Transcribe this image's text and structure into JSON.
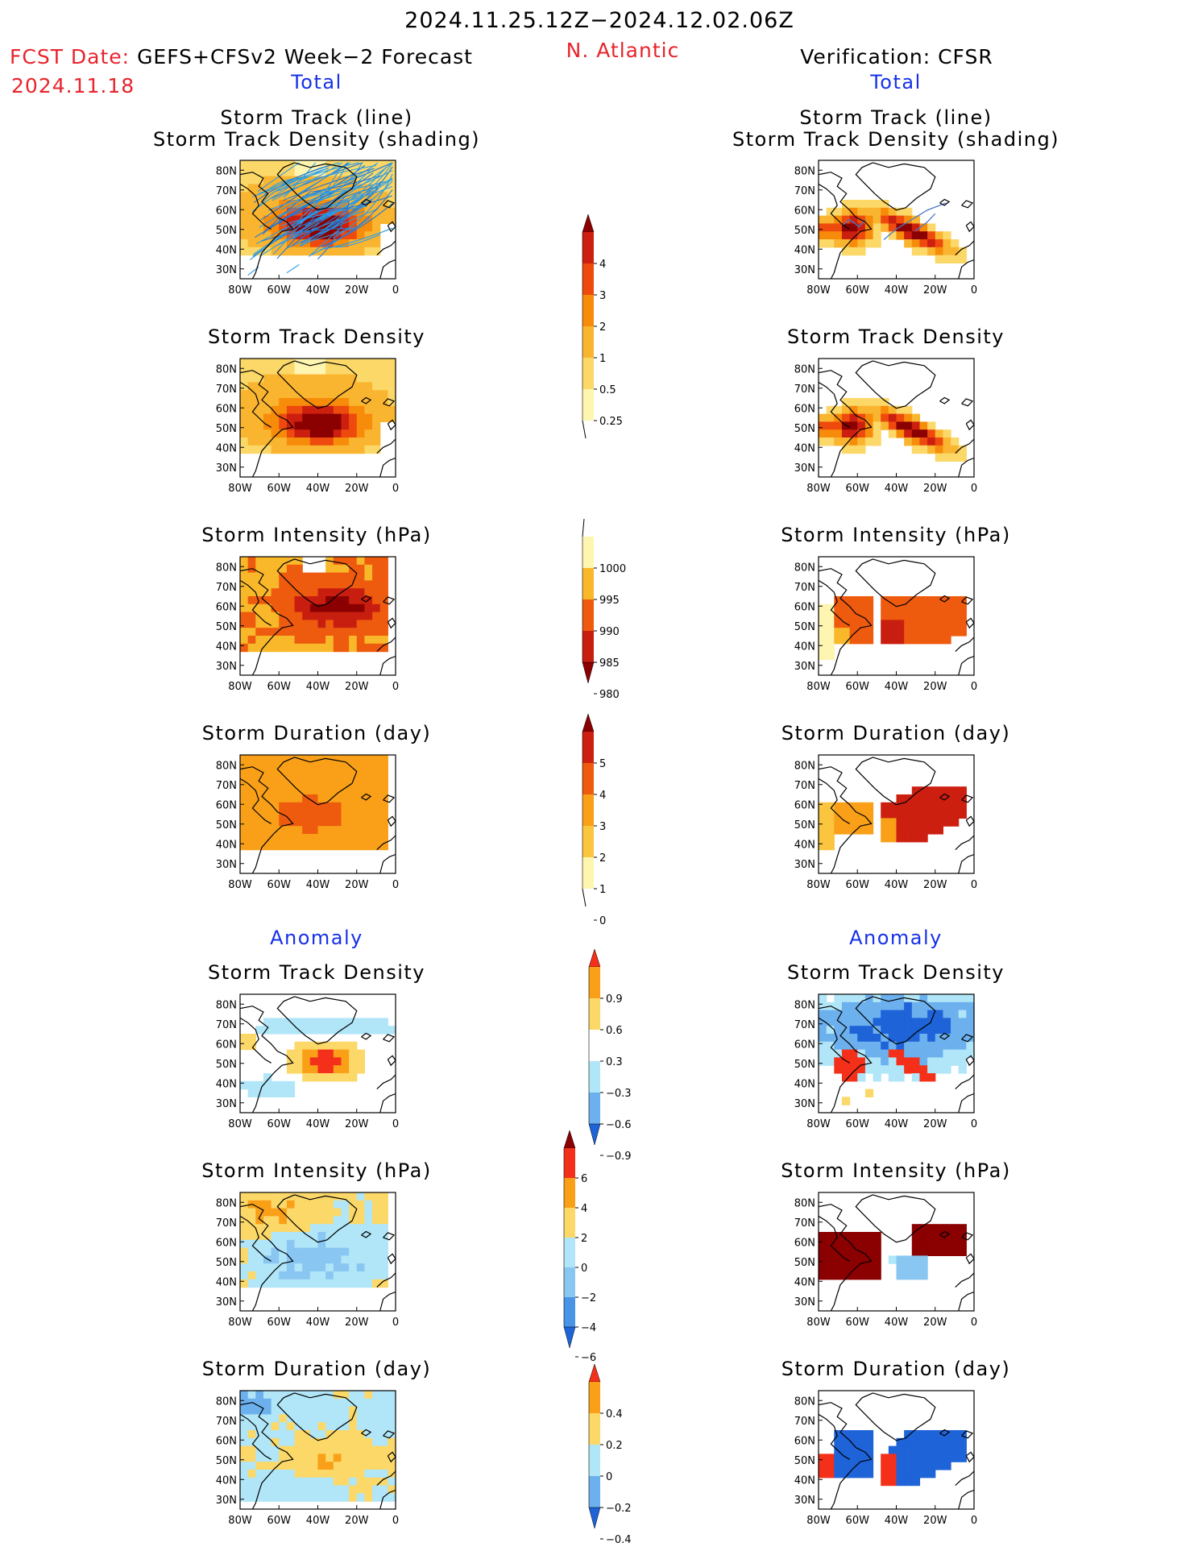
{
  "header": {
    "date_range": "2024.11.25.12Z−2024.12.02.06Z",
    "region": "N. Atlantic",
    "fcst_label": "FCST Date:",
    "fcst_product": "GEFS+CFSv2 Week−2 Forecast",
    "fcst_date": "2024.11.18",
    "verification": "Verification: CFSR"
  },
  "sections": {
    "total": "Total",
    "anomaly": "Anomaly"
  },
  "panel_titles": {
    "track_line": "Storm Track (line)",
    "track_density_shading": "Storm Track Density (shading)",
    "density": "Storm Track Density",
    "intensity": "Storm Intensity (hPa)",
    "duration": "Storm Duration (day)"
  },
  "map_axes": {
    "lat_labels": [
      "80N",
      "70N",
      "60N",
      "50N",
      "40N",
      "30N"
    ],
    "lon_labels": [
      "80W",
      "60W",
      "40W",
      "20W",
      "0"
    ],
    "lat_range": [
      25,
      85
    ],
    "lon_range": [
      -80,
      0
    ]
  },
  "colorbars": [
    {
      "name": "density-total",
      "levels": [
        "4",
        "3",
        "2",
        "1",
        "0.5",
        "0.25"
      ],
      "colors": [
        "#8b0000",
        "#cc1f10",
        "#ee4a0e",
        "#f78b0a",
        "#fab530",
        "#fbd868",
        "#fdf5b0"
      ]
    },
    {
      "name": "intensity-total",
      "levels": [
        "1000",
        "995",
        "990",
        "985",
        "980"
      ],
      "colors": [
        "#fdf5b0",
        "#f9b82a",
        "#ee5a0e",
        "#c81e10",
        "#8b0000"
      ]
    },
    {
      "name": "duration-total",
      "levels": [
        "5",
        "4",
        "3",
        "2",
        "1",
        "0"
      ],
      "colors": [
        "#8b0000",
        "#cc1f10",
        "#ee5a0e",
        "#f9a018",
        "#fbc540",
        "#fdf5b0"
      ]
    },
    {
      "name": "density-anomaly",
      "levels": [
        "0.9",
        "0.6",
        "0.3",
        "−0.3",
        "−0.6",
        "−0.9"
      ],
      "colors": [
        "#f4301a",
        "#f9a018",
        "#fbd868",
        "#ffffff",
        "#b0e6f8",
        "#6cb0ee",
        "#1e63d8"
      ]
    },
    {
      "name": "intensity-anomaly",
      "levels": [
        "6",
        "4",
        "2",
        "0",
        "−2",
        "−4",
        "−6"
      ],
      "colors": [
        "#8b0000",
        "#f4301a",
        "#f9a018",
        "#fbd868",
        "#b0e6f8",
        "#8ac6f2",
        "#4a94e8",
        "#1e63d8"
      ]
    },
    {
      "name": "duration-anomaly",
      "levels": [
        "0.4",
        "0.2",
        "0",
        "−0.2",
        "−0.4"
      ],
      "colors": [
        "#f4301a",
        "#f9a018",
        "#fbd868",
        "#b0e6f8",
        "#6cb0ee",
        "#1e63d8"
      ]
    }
  ],
  "chart_data": {
    "type": "heatmap",
    "panels": [
      {
        "column": "forecast",
        "row": 1,
        "field": "storm track (line) + storm track density"
      },
      {
        "column": "forecast",
        "row": 2,
        "field": "storm track density"
      },
      {
        "column": "forecast",
        "row": 3,
        "field": "storm intensity (hPa)"
      },
      {
        "column": "forecast",
        "row": 4,
        "field": "storm duration (day)"
      },
      {
        "column": "forecast",
        "row": 5,
        "field": "storm track density anomaly"
      },
      {
        "column": "forecast",
        "row": 6,
        "field": "storm intensity anomaly (hPa)"
      },
      {
        "column": "forecast",
        "row": 7,
        "field": "storm duration anomaly (day)"
      },
      {
        "column": "verification",
        "row": 1,
        "field": "storm track (line) + storm track density"
      },
      {
        "column": "verification",
        "row": 2,
        "field": "storm track density"
      },
      {
        "column": "verification",
        "row": 3,
        "field": "storm intensity (hPa)"
      },
      {
        "column": "verification",
        "row": 4,
        "field": "storm duration (day)"
      },
      {
        "column": "verification",
        "row": 5,
        "field": "storm track density anomaly"
      },
      {
        "column": "verification",
        "row": 6,
        "field": "storm intensity anomaly (hPa)"
      },
      {
        "column": "verification",
        "row": 7,
        "field": "storm duration anomaly (day)"
      }
    ]
  }
}
